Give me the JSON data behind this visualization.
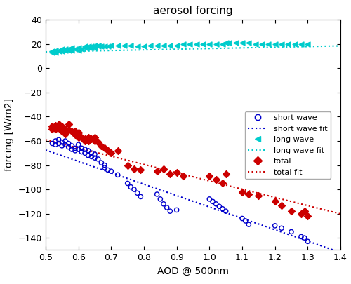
{
  "title": "aerosol forcing",
  "xlabel": "AOD @ 500nm",
  "ylabel": "forcing [W/m2]",
  "xlim": [
    0.5,
    1.4
  ],
  "ylim": [
    -150,
    40
  ],
  "xticks": [
    0.5,
    0.6,
    0.7,
    0.8,
    0.9,
    1.0,
    1.1,
    1.2,
    1.3,
    1.4
  ],
  "yticks": [
    40,
    20,
    0,
    -20,
    -40,
    -60,
    -80,
    -100,
    -120,
    -140
  ],
  "sw_x": [
    0.52,
    0.53,
    0.53,
    0.54,
    0.54,
    0.55,
    0.55,
    0.56,
    0.56,
    0.57,
    0.57,
    0.58,
    0.58,
    0.59,
    0.59,
    0.6,
    0.6,
    0.61,
    0.61,
    0.62,
    0.62,
    0.63,
    0.63,
    0.64,
    0.64,
    0.65,
    0.65,
    0.66,
    0.67,
    0.68,
    0.68,
    0.69,
    0.7,
    0.72,
    0.75,
    0.76,
    0.77,
    0.78,
    0.79,
    0.84,
    0.85,
    0.86,
    0.87,
    0.88,
    0.9,
    1.0,
    1.01,
    1.02,
    1.03,
    1.04,
    1.05,
    1.1,
    1.11,
    1.12,
    1.2,
    1.22,
    1.25,
    1.28,
    1.29,
    1.3
  ],
  "sw_y": [
    -62,
    -60,
    -63,
    -59,
    -62,
    -61,
    -64,
    -60,
    -63,
    -62,
    -65,
    -64,
    -67,
    -66,
    -68,
    -63,
    -67,
    -66,
    -69,
    -67,
    -70,
    -68,
    -72,
    -70,
    -73,
    -71,
    -74,
    -75,
    -78,
    -80,
    -82,
    -84,
    -85,
    -88,
    -95,
    -98,
    -100,
    -103,
    -106,
    -104,
    -108,
    -112,
    -115,
    -118,
    -117,
    -108,
    -110,
    -112,
    -114,
    -116,
    -118,
    -124,
    -126,
    -129,
    -130,
    -132,
    -135,
    -139,
    -140,
    -143
  ],
  "lw_x": [
    0.52,
    0.52,
    0.53,
    0.53,
    0.54,
    0.54,
    0.55,
    0.55,
    0.56,
    0.56,
    0.57,
    0.57,
    0.58,
    0.58,
    0.59,
    0.6,
    0.6,
    0.61,
    0.62,
    0.62,
    0.63,
    0.63,
    0.64,
    0.64,
    0.65,
    0.65,
    0.66,
    0.66,
    0.67,
    0.68,
    0.69,
    0.7,
    0.72,
    0.74,
    0.76,
    0.78,
    0.8,
    0.82,
    0.84,
    0.86,
    0.88,
    0.9,
    0.92,
    0.94,
    0.96,
    0.98,
    1.0,
    1.02,
    1.04,
    1.05,
    1.06,
    1.08,
    1.1,
    1.12,
    1.14,
    1.16,
    1.18,
    1.2,
    1.22,
    1.24,
    1.26,
    1.28,
    1.3
  ],
  "lw_y": [
    13,
    14,
    13,
    15,
    14,
    15,
    14,
    16,
    15,
    16,
    15,
    16,
    15,
    17,
    16,
    15,
    17,
    16,
    17,
    18,
    17,
    18,
    17,
    18,
    17,
    19,
    18,
    19,
    18,
    18,
    18,
    19,
    19,
    19,
    19,
    18,
    18,
    19,
    19,
    19,
    19,
    19,
    20,
    20,
    20,
    20,
    20,
    20,
    20,
    21,
    21,
    21,
    21,
    21,
    20,
    20,
    20,
    20,
    20,
    20,
    20,
    20,
    20
  ],
  "total_x": [
    0.52,
    0.52,
    0.53,
    0.53,
    0.54,
    0.54,
    0.55,
    0.55,
    0.56,
    0.56,
    0.57,
    0.57,
    0.58,
    0.59,
    0.59,
    0.6,
    0.6,
    0.61,
    0.62,
    0.62,
    0.63,
    0.63,
    0.64,
    0.65,
    0.65,
    0.66,
    0.67,
    0.68,
    0.69,
    0.7,
    0.72,
    0.75,
    0.77,
    0.79,
    0.84,
    0.86,
    0.88,
    0.9,
    0.92,
    1.0,
    1.02,
    1.04,
    1.05,
    1.1,
    1.12,
    1.15,
    1.2,
    1.22,
    1.25,
    1.28,
    1.29,
    1.3
  ],
  "total_y": [
    -48,
    -50,
    -47,
    -50,
    -46,
    -49,
    -48,
    -52,
    -50,
    -54,
    -46,
    -51,
    -52,
    -52,
    -55,
    -53,
    -57,
    -57,
    -58,
    -60,
    -57,
    -60,
    -58,
    -57,
    -60,
    -61,
    -64,
    -66,
    -68,
    -70,
    -68,
    -80,
    -83,
    -84,
    -85,
    -83,
    -87,
    -86,
    -89,
    -89,
    -92,
    -95,
    -87,
    -102,
    -104,
    -105,
    -110,
    -113,
    -118,
    -120,
    -118,
    -122
  ],
  "sw_fit_slope": -94.0,
  "sw_fit_intercept": -20.5,
  "lw_fit_slope": 5.5,
  "lw_fit_intercept": 10.8,
  "total_fit_slope": -68.0,
  "total_fit_intercept": -25.0,
  "sw_color": "#0000cc",
  "lw_color": "#00cccc",
  "total_color": "#cc0000",
  "bg_color": "#ffffff"
}
